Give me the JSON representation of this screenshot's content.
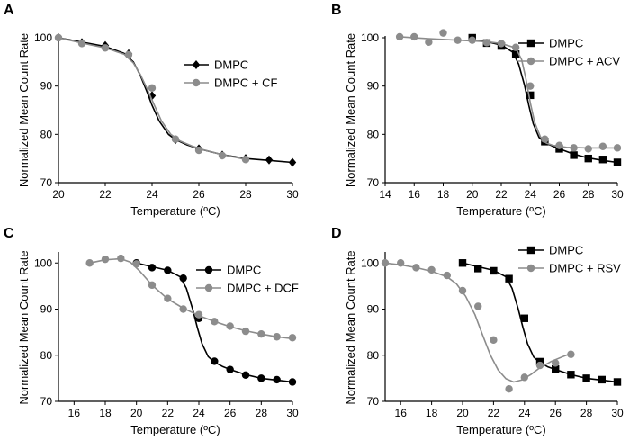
{
  "chart_data": [
    {
      "panel": "A",
      "type": "line",
      "xlabel": "Temperature (ºC)",
      "ylabel": "Normalized Mean Count Rate",
      "xlim": [
        20,
        30
      ],
      "ylim": [
        70,
        100
      ],
      "xticks": [
        20,
        22,
        24,
        26,
        28,
        30
      ],
      "yticks": [
        70,
        80,
        90,
        100
      ],
      "legend_position": "right",
      "series": [
        {
          "name": "DMPC",
          "marker": "diamond",
          "color": "#000000",
          "x": [
            20,
            21,
            22,
            23,
            24,
            25,
            26,
            27,
            28,
            29,
            30
          ],
          "y": [
            100,
            99.0,
            98.4,
            96.7,
            88.0,
            78.9,
            77.0,
            75.7,
            75.0,
            74.7,
            74.2
          ],
          "curve_x": [
            20,
            21,
            22,
            22.8,
            23.2,
            23.5,
            23.8,
            24.0,
            24.3,
            24.7,
            25.0,
            25.5,
            26,
            27,
            28,
            29,
            30
          ],
          "curve_y": [
            100,
            99.1,
            98.2,
            96.8,
            95.0,
            92.2,
            88.6,
            86.0,
            82.8,
            80.0,
            78.9,
            77.8,
            77.0,
            75.8,
            75.0,
            74.6,
            74.2
          ]
        },
        {
          "name": "DMPC + CF",
          "marker": "circle",
          "color": "#8c8c8c",
          "x": [
            20,
            21,
            22,
            23,
            24,
            25,
            26,
            27,
            28
          ],
          "y": [
            100,
            98.8,
            97.9,
            96.5,
            89.6,
            79.0,
            76.7,
            75.6,
            74.8
          ],
          "curve_x": [
            20,
            21,
            22,
            22.8,
            23.2,
            23.5,
            23.8,
            24.1,
            24.4,
            24.8,
            25.2,
            25.7,
            26.2,
            27,
            28
          ],
          "curve_y": [
            100,
            98.9,
            97.9,
            96.6,
            94.8,
            92.4,
            89.3,
            86.0,
            82.8,
            80.0,
            78.6,
            77.6,
            76.8,
            75.8,
            74.8
          ]
        }
      ]
    },
    {
      "panel": "B",
      "type": "line",
      "xlabel": "Temperature (ºC)",
      "ylabel": "Normalized Mean Count Rate",
      "xlim": [
        14,
        30
      ],
      "ylim": [
        70,
        100
      ],
      "xticks": [
        14,
        16,
        18,
        20,
        22,
        24,
        26,
        28,
        30
      ],
      "yticks": [
        70,
        80,
        90,
        100
      ],
      "legend_position": "top-right",
      "series": [
        {
          "name": "DMPC",
          "marker": "square",
          "color": "#000000",
          "x": [
            20,
            21,
            22,
            23,
            24,
            25,
            26,
            27,
            28,
            29,
            30
          ],
          "y": [
            100,
            98.9,
            98.3,
            96.6,
            88.1,
            78.5,
            77.0,
            75.7,
            75.0,
            74.8,
            74.2
          ],
          "curve_x": [
            20,
            21,
            22,
            22.8,
            23.2,
            23.6,
            23.9,
            24.2,
            24.6,
            25.0,
            25.5,
            26,
            27,
            28,
            29,
            30
          ],
          "curve_y": [
            99.5,
            99.2,
            98.5,
            97.0,
            94.5,
            90.2,
            86.0,
            82.2,
            79.4,
            78.3,
            77.6,
            77.0,
            75.9,
            75.1,
            74.6,
            74.2
          ]
        },
        {
          "name": "DMPC + ACV",
          "marker": "circle",
          "color": "#8c8c8c",
          "x": [
            15,
            16,
            17,
            18,
            19,
            20,
            21,
            22,
            23,
            24,
            25,
            26,
            27,
            28,
            29,
            30
          ],
          "y": [
            100.2,
            100.2,
            99.1,
            101.0,
            99.5,
            99.5,
            99.0,
            98.8,
            98.0,
            90.0,
            79.0,
            77.7,
            77.2,
            77.0,
            77.5,
            77.2
          ],
          "curve_x": [
            15,
            17,
            19,
            21,
            22,
            23,
            23.4,
            23.7,
            24.0,
            24.3,
            24.7,
            25.1,
            25.6,
            26.5,
            28,
            30
          ],
          "curve_y": [
            100.2,
            99.8,
            99.5,
            99.2,
            98.8,
            97.9,
            95.5,
            91.5,
            86.5,
            82.5,
            79.5,
            78.2,
            77.7,
            77.3,
            77.2,
            77.2
          ]
        }
      ]
    },
    {
      "panel": "C",
      "type": "line",
      "xlabel": "Temperature (ºC)",
      "ylabel": "Normalized Mean Count Rate",
      "xlim": [
        15,
        30
      ],
      "ylim": [
        70,
        102
      ],
      "xticks": [
        16,
        18,
        20,
        22,
        24,
        26,
        28,
        30
      ],
      "yticks": [
        70,
        80,
        90,
        100
      ],
      "legend_position": "top-right",
      "series": [
        {
          "name": "DMPC",
          "marker": "circle",
          "color": "#000000",
          "x": [
            20,
            21,
            22,
            23,
            24,
            25,
            26,
            27,
            28,
            29,
            30
          ],
          "y": [
            100,
            99.0,
            98.4,
            96.7,
            88.0,
            78.7,
            76.9,
            75.7,
            75.0,
            74.7,
            74.2
          ],
          "curve_x": [
            20,
            21,
            22,
            22.8,
            23.2,
            23.6,
            23.9,
            24.2,
            24.6,
            25.0,
            25.5,
            26,
            27,
            28,
            29,
            30
          ],
          "curve_y": [
            100,
            99.2,
            98.4,
            97.0,
            94.5,
            90.0,
            86.0,
            82.5,
            79.7,
            78.5,
            77.6,
            76.9,
            75.8,
            75.0,
            74.6,
            74.2
          ]
        },
        {
          "name": "DMPC + DCF",
          "marker": "circle",
          "color": "#8c8c8c",
          "x": [
            17,
            18,
            19,
            20,
            21,
            22,
            23,
            24,
            25,
            26,
            27,
            28,
            29,
            30
          ],
          "y": [
            100.0,
            100.8,
            101.0,
            99.8,
            95.2,
            92.3,
            90.0,
            88.8,
            87.3,
            86.3,
            85.2,
            84.6,
            84.0,
            83.8
          ],
          "curve_x": [
            17,
            18,
            19,
            19.6,
            20.2,
            21,
            22,
            23,
            24,
            25,
            26,
            27,
            28,
            29,
            30
          ],
          "curve_y": [
            100.0,
            100.7,
            100.9,
            100.2,
            98.3,
            95.2,
            92.2,
            90.2,
            88.6,
            87.3,
            86.2,
            85.3,
            84.6,
            84.0,
            83.6
          ]
        }
      ]
    },
    {
      "panel": "D",
      "type": "line",
      "xlabel": "Temperature (ºC)",
      "ylabel": "Normalized Mean Count Rate",
      "xlim": [
        15,
        30
      ],
      "ylim": [
        70,
        102
      ],
      "xticks": [
        16,
        18,
        20,
        22,
        24,
        26,
        28,
        30
      ],
      "yticks": [
        70,
        80,
        90,
        100
      ],
      "legend_position": "top-right",
      "series": [
        {
          "name": "DMPC",
          "marker": "square",
          "color": "#000000",
          "x": [
            20,
            21,
            22,
            23,
            24,
            25,
            26,
            27,
            28,
            29,
            30
          ],
          "y": [
            100,
            98.8,
            98.3,
            96.6,
            88.0,
            78.6,
            77.0,
            75.8,
            75.0,
            74.7,
            74.2
          ],
          "curve_x": [
            20,
            21,
            22,
            22.8,
            23.2,
            23.6,
            23.9,
            24.2,
            24.6,
            25.0,
            25.5,
            26,
            27,
            28,
            29,
            30
          ],
          "curve_y": [
            100,
            99.2,
            98.4,
            97.0,
            94.5,
            90.0,
            86.0,
            82.5,
            79.6,
            78.4,
            77.5,
            76.9,
            75.8,
            75.0,
            74.6,
            74.2
          ]
        },
        {
          "name": "DMPC + RSV",
          "marker": "circle",
          "color": "#8c8c8c",
          "x": [
            15,
            16,
            17,
            18,
            19,
            20,
            21,
            22,
            23,
            24,
            25,
            26,
            27
          ],
          "y": [
            100.0,
            100.0,
            99.0,
            98.5,
            97.3,
            94.0,
            90.6,
            83.3,
            72.7,
            75.2,
            77.8,
            78.3,
            80.2
          ],
          "curve_x": [
            15,
            16,
            17,
            18,
            19,
            19.6,
            20.2,
            20.8,
            21.3,
            21.8,
            22.3,
            22.8,
            23.3,
            23.8,
            24.4,
            25.0,
            25.7,
            26.4,
            27
          ],
          "curve_y": [
            100.0,
            99.6,
            99.0,
            98.2,
            97.0,
            95.5,
            92.8,
            88.8,
            84.3,
            80.0,
            76.8,
            74.9,
            74.2,
            74.6,
            75.8,
            77.3,
            78.6,
            79.6,
            80.4
          ]
        }
      ]
    }
  ],
  "labels": {
    "a": "A",
    "b": "B",
    "c": "C",
    "d": "D"
  }
}
